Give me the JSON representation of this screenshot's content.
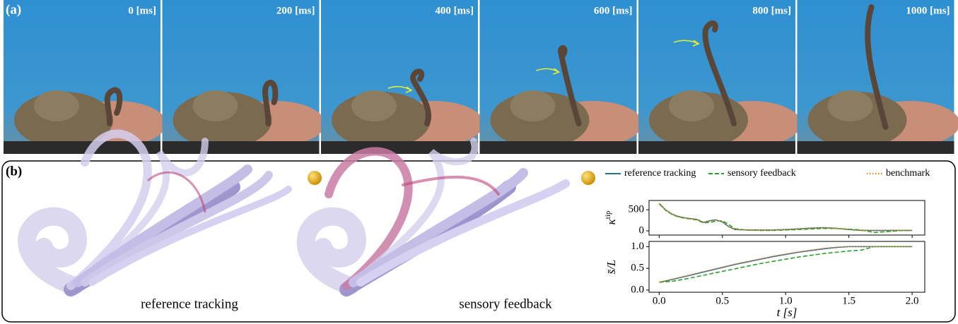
{
  "panel_a": {
    "label": "(a)",
    "frames": [
      "0 [ms]",
      "200 [ms]",
      "400 [ms]",
      "600 [ms]",
      "800 [ms]",
      "1000 [ms]"
    ]
  },
  "panel_b": {
    "label": "(b)",
    "captions": [
      "reference tracking",
      "sensory feedback"
    ]
  },
  "chart_data": [
    {
      "type": "line",
      "ylabel": "κ",
      "ylabel_sup": "tip",
      "x": [
        0,
        0.05,
        0.1,
        0.15,
        0.2,
        0.25,
        0.3,
        0.35,
        0.4,
        0.45,
        0.5,
        0.55,
        0.6,
        0.7,
        0.8,
        0.9,
        1.0,
        1.1,
        1.2,
        1.3,
        1.4,
        1.5,
        1.6,
        1.7,
        1.8,
        1.9,
        2.0
      ],
      "xlim": [
        -0.08,
        2.1
      ],
      "xticks": [
        0,
        0.5,
        1,
        1.5,
        2
      ],
      "ylim": [
        -100,
        720
      ],
      "yticks": [
        0,
        500
      ],
      "legend": "top",
      "series": [
        {
          "name": "reference tracking",
          "color": "#2b6e96",
          "dash": "solid",
          "values": [
            650,
            500,
            400,
            340,
            310,
            290,
            270,
            200,
            240,
            260,
            210,
            100,
            30,
            20,
            20,
            20,
            30,
            45,
            65,
            75,
            60,
            30,
            10,
            10,
            10,
            10,
            10
          ]
        },
        {
          "name": "sensory feedback",
          "color": "#2ca02c",
          "dash": "dashed",
          "values": [
            640,
            490,
            390,
            330,
            300,
            280,
            255,
            190,
            200,
            230,
            240,
            150,
            50,
            15,
            10,
            10,
            20,
            30,
            45,
            55,
            55,
            40,
            20,
            -40,
            -20,
            5,
            10
          ]
        },
        {
          "name": "benchmark",
          "color": "#ff7f0e",
          "dash": "dotted",
          "values": [
            650,
            500,
            400,
            340,
            310,
            290,
            270,
            205,
            235,
            255,
            215,
            105,
            35,
            20,
            20,
            20,
            30,
            45,
            65,
            75,
            60,
            30,
            10,
            10,
            10,
            10,
            10
          ]
        }
      ]
    },
    {
      "type": "line",
      "ylabel": "s̄/L",
      "xlabel": "t [s]",
      "x": [
        0,
        0.1,
        0.2,
        0.3,
        0.4,
        0.5,
        0.6,
        0.7,
        0.8,
        0.9,
        1.0,
        1.1,
        1.2,
        1.3,
        1.4,
        1.5,
        1.6,
        1.7,
        1.8,
        1.9,
        2.0
      ],
      "xlim": [
        -0.08,
        2.1
      ],
      "xticks": [
        {
          "value": 0,
          "label": "0.0"
        },
        {
          "value": 0.5,
          "label": "0.5"
        },
        {
          "value": 1,
          "label": "1.0"
        },
        {
          "value": 1.5,
          "label": "1.5"
        },
        {
          "value": 2,
          "label": "2.0"
        }
      ],
      "ylim": [
        -0.05,
        1.12
      ],
      "yticks": [
        {
          "value": 0,
          "label": "0.0"
        },
        {
          "value": 0.5,
          "label": "0.5"
        },
        {
          "value": 1,
          "label": "1.0"
        }
      ],
      "series": [
        {
          "color": "#2b6e96",
          "dash": "solid",
          "values": [
            0.18,
            0.24,
            0.31,
            0.38,
            0.45,
            0.52,
            0.59,
            0.65,
            0.71,
            0.77,
            0.82,
            0.87,
            0.91,
            0.95,
            0.98,
            1,
            1,
            1,
            1,
            1,
            1
          ]
        },
        {
          "color": "#2ca02c",
          "dash": "dashed",
          "values": [
            0.18,
            0.2,
            0.25,
            0.31,
            0.37,
            0.43,
            0.49,
            0.55,
            0.61,
            0.66,
            0.71,
            0.76,
            0.8,
            0.84,
            0.87,
            0.9,
            0.92,
            1,
            1,
            1,
            1
          ]
        },
        {
          "color": "#ff7f0e",
          "dash": "dotted",
          "values": [
            0.18,
            0.25,
            0.32,
            0.39,
            0.46,
            0.53,
            0.6,
            0.66,
            0.72,
            0.78,
            0.83,
            0.88,
            0.92,
            0.96,
            0.99,
            1,
            1,
            1,
            1,
            1,
            1
          ]
        }
      ]
    }
  ]
}
